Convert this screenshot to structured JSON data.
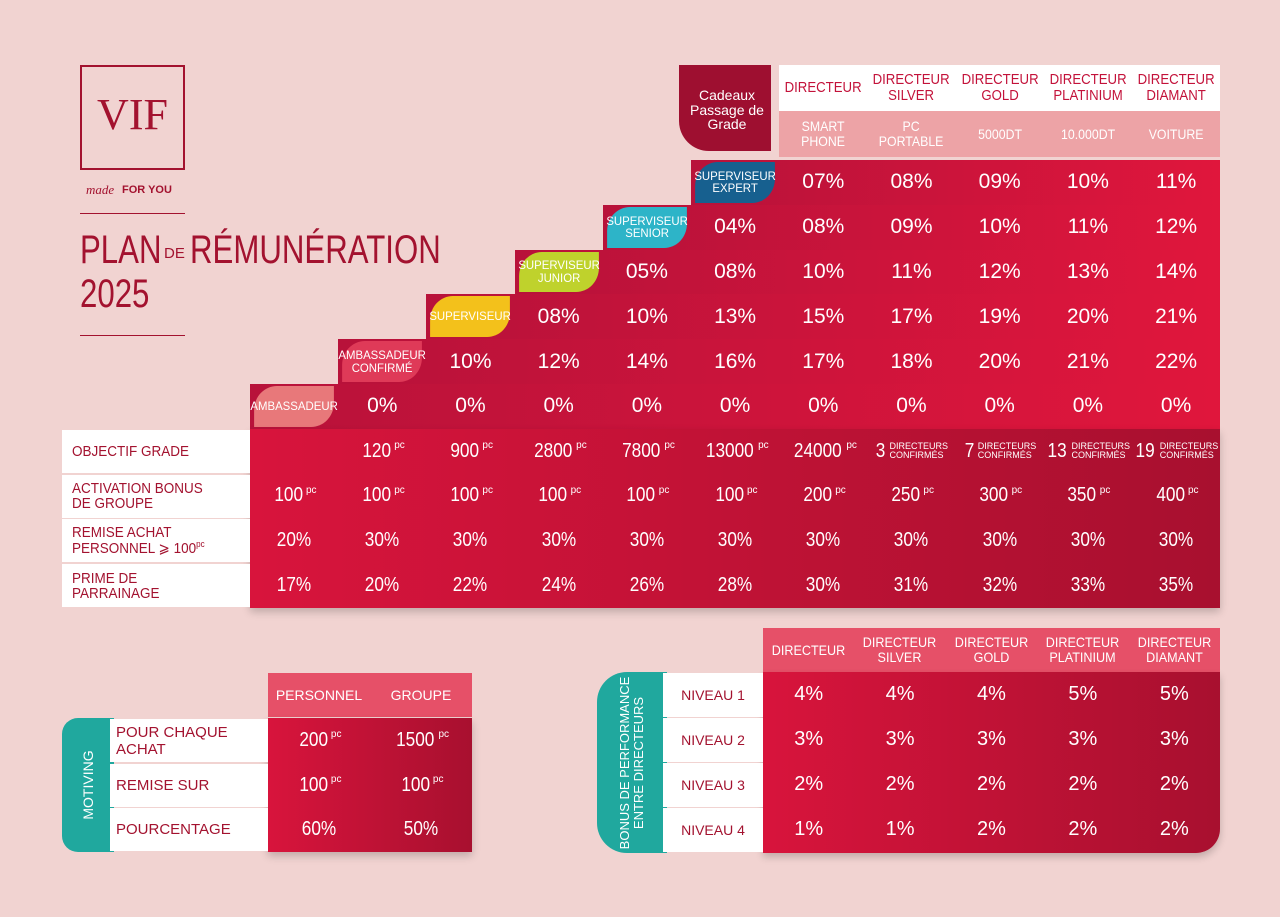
{
  "logo": {
    "brand": "VIF",
    "script": "made",
    "tagline": "FOR YOU"
  },
  "title": {
    "plan": "PLAN",
    "connector": "DE",
    "word": "RÉMUNÉRATION",
    "year": "2025"
  },
  "grades": [
    "AMBASSADEUR",
    "AMBASSADEUR CONFIRMÉ",
    "SUPERVISEUR",
    "SUPERVISEUR JUNIOR",
    "SUPERVISEUR SENIOR",
    "SUPERVISEUR EXPERT",
    "DIRECTEUR",
    "DIRECTEUR SILVER",
    "DIRECTEUR GOLD",
    "DIRECTEUR PLATINIUM",
    "DIRECTEUR DIAMANT"
  ],
  "gifts": {
    "label": "Cadeaux Passage de Grade",
    "items": [
      "SMART PHONE",
      "PC PORTABLE",
      "5000DT",
      "10.000DT",
      "VOITURE"
    ]
  },
  "commission_rows": [
    [
      "07%",
      "08%",
      "09%",
      "10%",
      "11%"
    ],
    [
      "04%",
      "08%",
      "09%",
      "10%",
      "11%",
      "12%"
    ],
    [
      "05%",
      "08%",
      "10%",
      "11%",
      "12%",
      "13%",
      "14%"
    ],
    [
      "08%",
      "10%",
      "13%",
      "15%",
      "17%",
      "19%",
      "20%",
      "21%"
    ],
    [
      "10%",
      "12%",
      "14%",
      "16%",
      "17%",
      "18%",
      "20%",
      "21%",
      "22%"
    ],
    [
      "0%",
      "0%",
      "0%",
      "0%",
      "0%",
      "0%",
      "0%",
      "0%",
      "0%",
      "0%"
    ]
  ],
  "criteria": [
    {
      "label": "OBJECTIF GRADE",
      "cells": [
        null,
        {
          "n": "120",
          "u": "pc"
        },
        {
          "n": "900",
          "u": "pc"
        },
        {
          "n": "2800",
          "u": "pc"
        },
        {
          "n": "7800",
          "u": "pc"
        },
        {
          "n": "13000",
          "u": "pc"
        },
        {
          "n": "24000",
          "u": "pc"
        },
        {
          "n": "3",
          "u": "DIRECTEURS CONFIRMÉS"
        },
        {
          "n": "7",
          "u": "DIRECTEURS CONFIRMÉS"
        },
        {
          "n": "13",
          "u": "DIRECTEURS CONFIRMÉS"
        },
        {
          "n": "19",
          "u": "DIRECTEURS CONFIRMÉS"
        }
      ]
    },
    {
      "label": "ACTIVATION BONUS DE GROUPE",
      "cells": [
        {
          "n": "100",
          "u": "pc"
        },
        {
          "n": "100",
          "u": "pc"
        },
        {
          "n": "100",
          "u": "pc"
        },
        {
          "n": "100",
          "u": "pc"
        },
        {
          "n": "100",
          "u": "pc"
        },
        {
          "n": "100",
          "u": "pc"
        },
        {
          "n": "200",
          "u": "pc"
        },
        {
          "n": "250",
          "u": "pc"
        },
        {
          "n": "300",
          "u": "pc"
        },
        {
          "n": "350",
          "u": "pc"
        },
        {
          "n": "400",
          "u": "pc"
        }
      ]
    },
    {
      "label": "REMISE ACHAT PERSONNEL ⩾ 100",
      "label_unit": "pc",
      "cells": [
        {
          "n": "20%"
        },
        {
          "n": "30%"
        },
        {
          "n": "30%"
        },
        {
          "n": "30%"
        },
        {
          "n": "30%"
        },
        {
          "n": "30%"
        },
        {
          "n": "30%"
        },
        {
          "n": "30%"
        },
        {
          "n": "30%"
        },
        {
          "n": "30%"
        },
        {
          "n": "30%"
        }
      ]
    },
    {
      "label": "PRIME DE PARRAINAGE",
      "cells": [
        {
          "n": "17%"
        },
        {
          "n": "20%"
        },
        {
          "n": "22%"
        },
        {
          "n": "24%"
        },
        {
          "n": "26%"
        },
        {
          "n": "28%"
        },
        {
          "n": "30%"
        },
        {
          "n": "31%"
        },
        {
          "n": "32%"
        },
        {
          "n": "33%"
        },
        {
          "n": "35%"
        }
      ]
    }
  ],
  "motiving": {
    "title": "MOTIVING",
    "columns": [
      "PERSONNEL",
      "GROUPE"
    ],
    "rows": [
      {
        "label": "POUR CHAQUE ACHAT",
        "cells": [
          {
            "n": "200",
            "u": "pc"
          },
          {
            "n": "1500",
            "u": "pc"
          }
        ]
      },
      {
        "label": "REMISE SUR",
        "cells": [
          {
            "n": "100",
            "u": "pc"
          },
          {
            "n": "100",
            "u": "pc"
          }
        ]
      },
      {
        "label": "POURCENTAGE",
        "cells": [
          {
            "n": "60%"
          },
          {
            "n": "50%"
          }
        ]
      }
    ]
  },
  "bonus": {
    "title": "BONUS DE PERFORMANCE ENTRE DIRECTEURS",
    "columns": [
      "DIRECTEUR",
      "DIRECTEUR SILVER",
      "DIRECTEUR GOLD",
      "DIRECTEUR PLATINIUM",
      "DIRECTEUR DIAMANT"
    ],
    "rows": [
      {
        "label": "NIVEAU 1",
        "cells": [
          "4%",
          "4%",
          "4%",
          "5%",
          "5%"
        ]
      },
      {
        "label": "NIVEAU 2",
        "cells": [
          "3%",
          "3%",
          "3%",
          "3%",
          "3%"
        ]
      },
      {
        "label": "NIVEAU 3",
        "cells": [
          "2%",
          "2%",
          "2%",
          "2%",
          "2%"
        ]
      },
      {
        "label": "NIVEAU 4",
        "cells": [
          "1%",
          "1%",
          "2%",
          "2%",
          "2%"
        ]
      }
    ]
  }
}
